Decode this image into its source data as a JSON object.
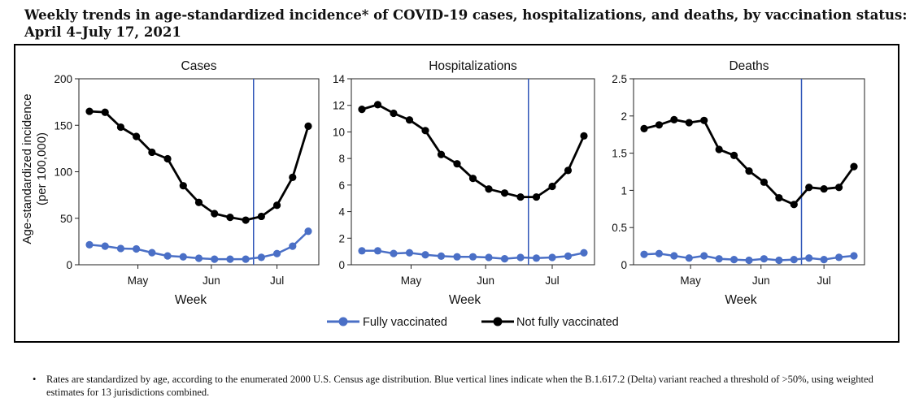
{
  "title_line1": "Weekly trends in age-standardized incidence* of COVID-19 cases, hospitalizations, and deaths, by vaccination status:",
  "title_line2": "April 4–July 17, 2021",
  "footnote": "Rates are standardized by age, according to the enumerated 2000 U.S. Census age distribution. Blue vertical lines indicate when the B.1.617.2 (Delta) variant reached a threshold of >50%, using weighted estimates for 13 jurisdictions combined.",
  "footnote_bullet": "•",
  "y_axis_label_line1": "Age-standardized incidence",
  "y_axis_label_line2": "(per 100,000)",
  "colors": {
    "fully_vaccinated": "#4a6fc6",
    "not_fully_vaccinated": "#000000",
    "delta_line": "#2f55b8"
  },
  "chart_data": [
    {
      "type": "line",
      "title": "Cases",
      "xlabel": "Week",
      "x_tick_labels": [
        "May",
        "Jun",
        "Jul"
      ],
      "y_ticks": [
        "0",
        "50",
        "100",
        "150",
        "200"
      ],
      "ylim": [
        0,
        200
      ],
      "delta_week_index": 10.5,
      "series": [
        {
          "name": "Fully vaccinated",
          "values": [
            21.5,
            20,
            17.5,
            17,
            13,
            9.5,
            8.5,
            7,
            6,
            6,
            6,
            8,
            12,
            20,
            36
          ]
        },
        {
          "name": "Not fully vaccinated",
          "values": [
            165,
            164,
            148,
            138,
            121,
            114,
            85,
            67,
            55,
            51,
            48,
            52,
            64,
            94,
            149
          ]
        }
      ]
    },
    {
      "type": "line",
      "title": "Hospitalizations",
      "xlabel": "Week",
      "x_tick_labels": [
        "May",
        "Jun",
        "Jul"
      ],
      "y_ticks": [
        "0",
        "2",
        "4",
        "6",
        "8",
        "10",
        "12",
        "14"
      ],
      "ylim": [
        0,
        14
      ],
      "delta_week_index": 10.5,
      "series": [
        {
          "name": "Fully vaccinated",
          "values": [
            1.05,
            1.05,
            0.85,
            0.9,
            0.75,
            0.65,
            0.6,
            0.6,
            0.55,
            0.45,
            0.55,
            0.5,
            0.55,
            0.65,
            0.9
          ]
        },
        {
          "name": "Not fully vaccinated",
          "values": [
            11.7,
            12.05,
            11.4,
            10.9,
            10.1,
            8.3,
            7.6,
            6.5,
            5.7,
            5.4,
            5.1,
            5.1,
            5.9,
            7.1,
            9.7
          ]
        }
      ]
    },
    {
      "type": "line",
      "title": "Deaths",
      "xlabel": "Week",
      "x_tick_labels": [
        "May",
        "Jun",
        "Jul"
      ],
      "y_ticks": [
        "0",
        "0.5",
        "1",
        "1.5",
        "2",
        "2.5"
      ],
      "ylim": [
        0,
        2.5
      ],
      "delta_week_index": 10.5,
      "series": [
        {
          "name": "Fully vaccinated",
          "values": [
            0.14,
            0.15,
            0.12,
            0.09,
            0.12,
            0.08,
            0.07,
            0.06,
            0.08,
            0.06,
            0.07,
            0.09,
            0.07,
            0.1,
            0.12
          ]
        },
        {
          "name": "Not fully vaccinated",
          "values": [
            1.83,
            1.88,
            1.95,
            1.91,
            1.94,
            1.55,
            1.47,
            1.26,
            1.11,
            0.9,
            0.81,
            1.04,
            1.02,
            1.04,
            1.32
          ]
        }
      ]
    }
  ],
  "legend": {
    "fully_vaccinated": "Fully vaccinated",
    "not_fully_vaccinated": "Not fully vaccinated",
    "placement": "bottom-center"
  }
}
